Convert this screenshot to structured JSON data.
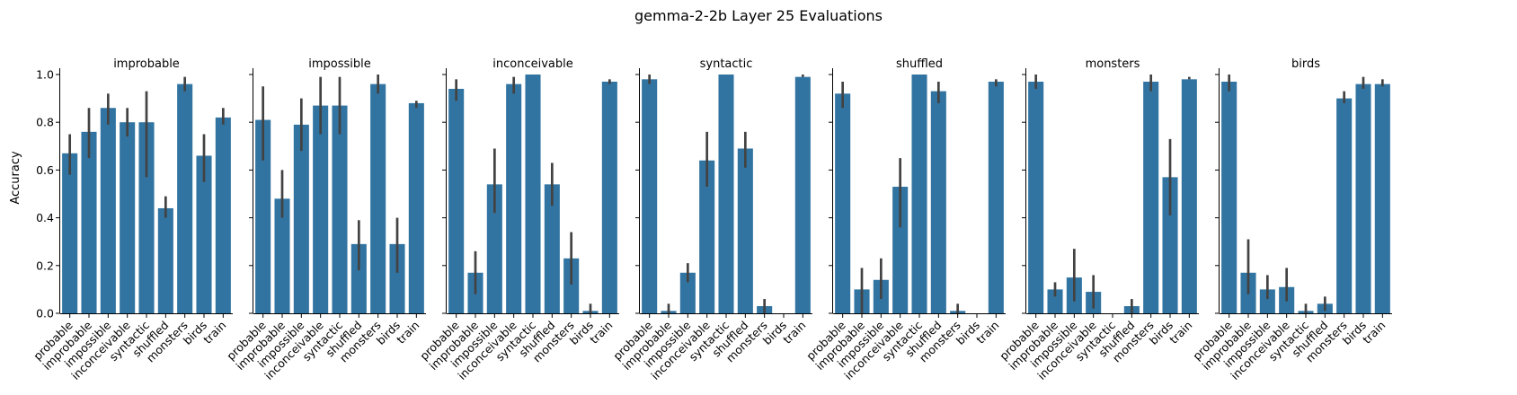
{
  "figure_title": "gemma-2-2b Layer 25 Evaluations",
  "y_axis_label": "Accuracy",
  "colors": {
    "bar": "#3274a1",
    "error_bar": "#424242"
  },
  "chart_data": [
    {
      "type": "bar",
      "title": "improbable",
      "categories": [
        "probable",
        "improbable",
        "impossible",
        "inconceivable",
        "syntactic",
        "shuffled",
        "monsters",
        "birds",
        "train"
      ],
      "values": [
        0.67,
        0.76,
        0.86,
        0.8,
        0.8,
        0.44,
        0.96,
        0.66,
        0.82
      ],
      "ci_low": [
        0.58,
        0.65,
        0.79,
        0.74,
        0.57,
        0.4,
        0.93,
        0.55,
        0.79
      ],
      "ci_high": [
        0.75,
        0.86,
        0.92,
        0.86,
        0.93,
        0.49,
        0.99,
        0.75,
        0.86
      ],
      "ylabel": "Accuracy",
      "ylim": [
        0,
        1
      ],
      "yticks": [
        "0.0",
        "0.2",
        "0.4",
        "0.6",
        "0.8",
        "1.0"
      ],
      "grid": false
    },
    {
      "type": "bar",
      "title": "impossible",
      "categories": [
        "probable",
        "improbable",
        "impossible",
        "inconceivable",
        "syntactic",
        "shuffled",
        "monsters",
        "birds",
        "train"
      ],
      "values": [
        0.81,
        0.48,
        0.79,
        0.87,
        0.87,
        0.29,
        0.96,
        0.29,
        0.88
      ],
      "ci_low": [
        0.64,
        0.4,
        0.68,
        0.75,
        0.75,
        0.18,
        0.92,
        0.17,
        0.86
      ],
      "ci_high": [
        0.95,
        0.6,
        0.9,
        0.99,
        0.99,
        0.39,
        1.0,
        0.4,
        0.89
      ],
      "ylabel": "",
      "ylim": [
        0,
        1
      ],
      "yticks": [
        "0.0",
        "0.2",
        "0.4",
        "0.6",
        "0.8",
        "1.0"
      ],
      "grid": false
    },
    {
      "type": "bar",
      "title": "inconceivable",
      "categories": [
        "probable",
        "improbable",
        "impossible",
        "inconceivable",
        "syntactic",
        "shuffled",
        "monsters",
        "birds",
        "train"
      ],
      "values": [
        0.94,
        0.17,
        0.54,
        0.96,
        1.0,
        0.54,
        0.23,
        0.01,
        0.97
      ],
      "ci_low": [
        0.89,
        0.08,
        0.42,
        0.92,
        1.0,
        0.45,
        0.12,
        0.0,
        0.96
      ],
      "ci_high": [
        0.98,
        0.26,
        0.69,
        0.99,
        1.0,
        0.63,
        0.34,
        0.04,
        0.98
      ],
      "ylabel": "",
      "ylim": [
        0,
        1
      ],
      "yticks": [
        "0.0",
        "0.2",
        "0.4",
        "0.6",
        "0.8",
        "1.0"
      ],
      "grid": false
    },
    {
      "type": "bar",
      "title": "syntactic",
      "categories": [
        "probable",
        "improbable",
        "impossible",
        "inconceivable",
        "syntactic",
        "shuffled",
        "monsters",
        "birds",
        "train"
      ],
      "values": [
        0.98,
        0.01,
        0.17,
        0.64,
        1.0,
        0.69,
        0.03,
        0.0,
        0.99
      ],
      "ci_low": [
        0.96,
        0.0,
        0.13,
        0.53,
        1.0,
        0.61,
        0.0,
        0.0,
        0.99
      ],
      "ci_high": [
        1.0,
        0.04,
        0.21,
        0.76,
        1.0,
        0.76,
        0.06,
        0.0,
        1.0
      ],
      "ylabel": "",
      "ylim": [
        0,
        1
      ],
      "yticks": [
        "0.0",
        "0.2",
        "0.4",
        "0.6",
        "0.8",
        "1.0"
      ],
      "grid": false
    },
    {
      "type": "bar",
      "title": "shuffled",
      "categories": [
        "probable",
        "improbable",
        "impossible",
        "inconceivable",
        "syntactic",
        "shuffled",
        "monsters",
        "birds",
        "train"
      ],
      "values": [
        0.92,
        0.1,
        0.14,
        0.53,
        1.0,
        0.93,
        0.01,
        0.0,
        0.97
      ],
      "ci_low": [
        0.86,
        0.0,
        0.06,
        0.36,
        1.0,
        0.88,
        0.0,
        0.0,
        0.95
      ],
      "ci_high": [
        0.97,
        0.19,
        0.23,
        0.65,
        1.0,
        0.97,
        0.04,
        0.0,
        0.98
      ],
      "ylabel": "",
      "ylim": [
        0,
        1
      ],
      "yticks": [
        "0.0",
        "0.2",
        "0.4",
        "0.6",
        "0.8",
        "1.0"
      ],
      "grid": false
    },
    {
      "type": "bar",
      "title": "monsters",
      "categories": [
        "probable",
        "improbable",
        "impossible",
        "inconceivable",
        "syntactic",
        "shuffled",
        "monsters",
        "birds",
        "train"
      ],
      "values": [
        0.97,
        0.1,
        0.15,
        0.09,
        0.0,
        0.03,
        0.97,
        0.57,
        0.98
      ],
      "ci_low": [
        0.94,
        0.07,
        0.05,
        0.02,
        0.0,
        0.0,
        0.93,
        0.41,
        0.98
      ],
      "ci_high": [
        1.0,
        0.13,
        0.27,
        0.16,
        0.0,
        0.06,
        1.0,
        0.73,
        0.99
      ],
      "ylabel": "",
      "ylim": [
        0,
        1
      ],
      "yticks": [
        "0.0",
        "0.2",
        "0.4",
        "0.6",
        "0.8",
        "1.0"
      ],
      "grid": false
    },
    {
      "type": "bar",
      "title": "birds",
      "categories": [
        "probable",
        "improbable",
        "impossible",
        "inconceivable",
        "syntactic",
        "shuffled",
        "monsters",
        "birds",
        "train"
      ],
      "values": [
        0.97,
        0.17,
        0.1,
        0.11,
        0.01,
        0.04,
        0.9,
        0.96,
        0.96
      ],
      "ci_low": [
        0.93,
        0.08,
        0.06,
        0.05,
        0.0,
        0.01,
        0.88,
        0.94,
        0.95
      ],
      "ci_high": [
        1.0,
        0.31,
        0.16,
        0.19,
        0.04,
        0.07,
        0.93,
        0.99,
        0.98
      ],
      "ylabel": "",
      "ylim": [
        0,
        1
      ],
      "yticks": [
        "0.0",
        "0.2",
        "0.4",
        "0.6",
        "0.8",
        "1.0"
      ],
      "grid": false
    }
  ]
}
